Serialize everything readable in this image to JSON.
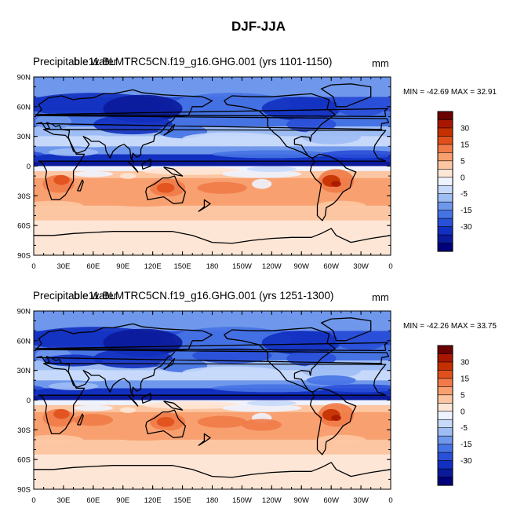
{
  "title": "DJF-JJA",
  "colorbar": {
    "labels": [
      "30",
      "15",
      "5",
      "0",
      "-5",
      "-15",
      "-30"
    ],
    "colors": [
      "#6b0000",
      "#a81800",
      "#c43000",
      "#e0501c",
      "#f07b48",
      "#f8a070",
      "#fcc6a2",
      "#fee6d6",
      "#eef3ff",
      "#c6d9fb",
      "#9ebdf5",
      "#6f98ec",
      "#4673e4",
      "#2a4fd8",
      "#1230c0",
      "#0a1a9a",
      "#00007a"
    ]
  },
  "axes": {
    "lat_labels": [
      "90N",
      "60N",
      "30N",
      "0",
      "30S",
      "60S",
      "90S"
    ],
    "lon_labels": [
      "0",
      "30E",
      "60E",
      "90E",
      "120E",
      "150E",
      "180",
      "150W",
      "120W",
      "90W",
      "60W",
      "30W",
      "0"
    ]
  },
  "panels": [
    {
      "title": "Precipitable water",
      "title_overlay": "b.e11.BLMTRC5CN.f19_g16.GHG.001 (yrs 1101-1150)",
      "units": "mm",
      "stats": "MIN = -42.69 MAX =  32.91"
    },
    {
      "title": "Precipitable water",
      "title_overlay": "b.e11.BLMTRC5CN.f19_g16.GHG.001 (yrs 1251-1300)",
      "units": "mm",
      "stats": "MIN = -42.26 MAX =  33.75"
    }
  ]
}
